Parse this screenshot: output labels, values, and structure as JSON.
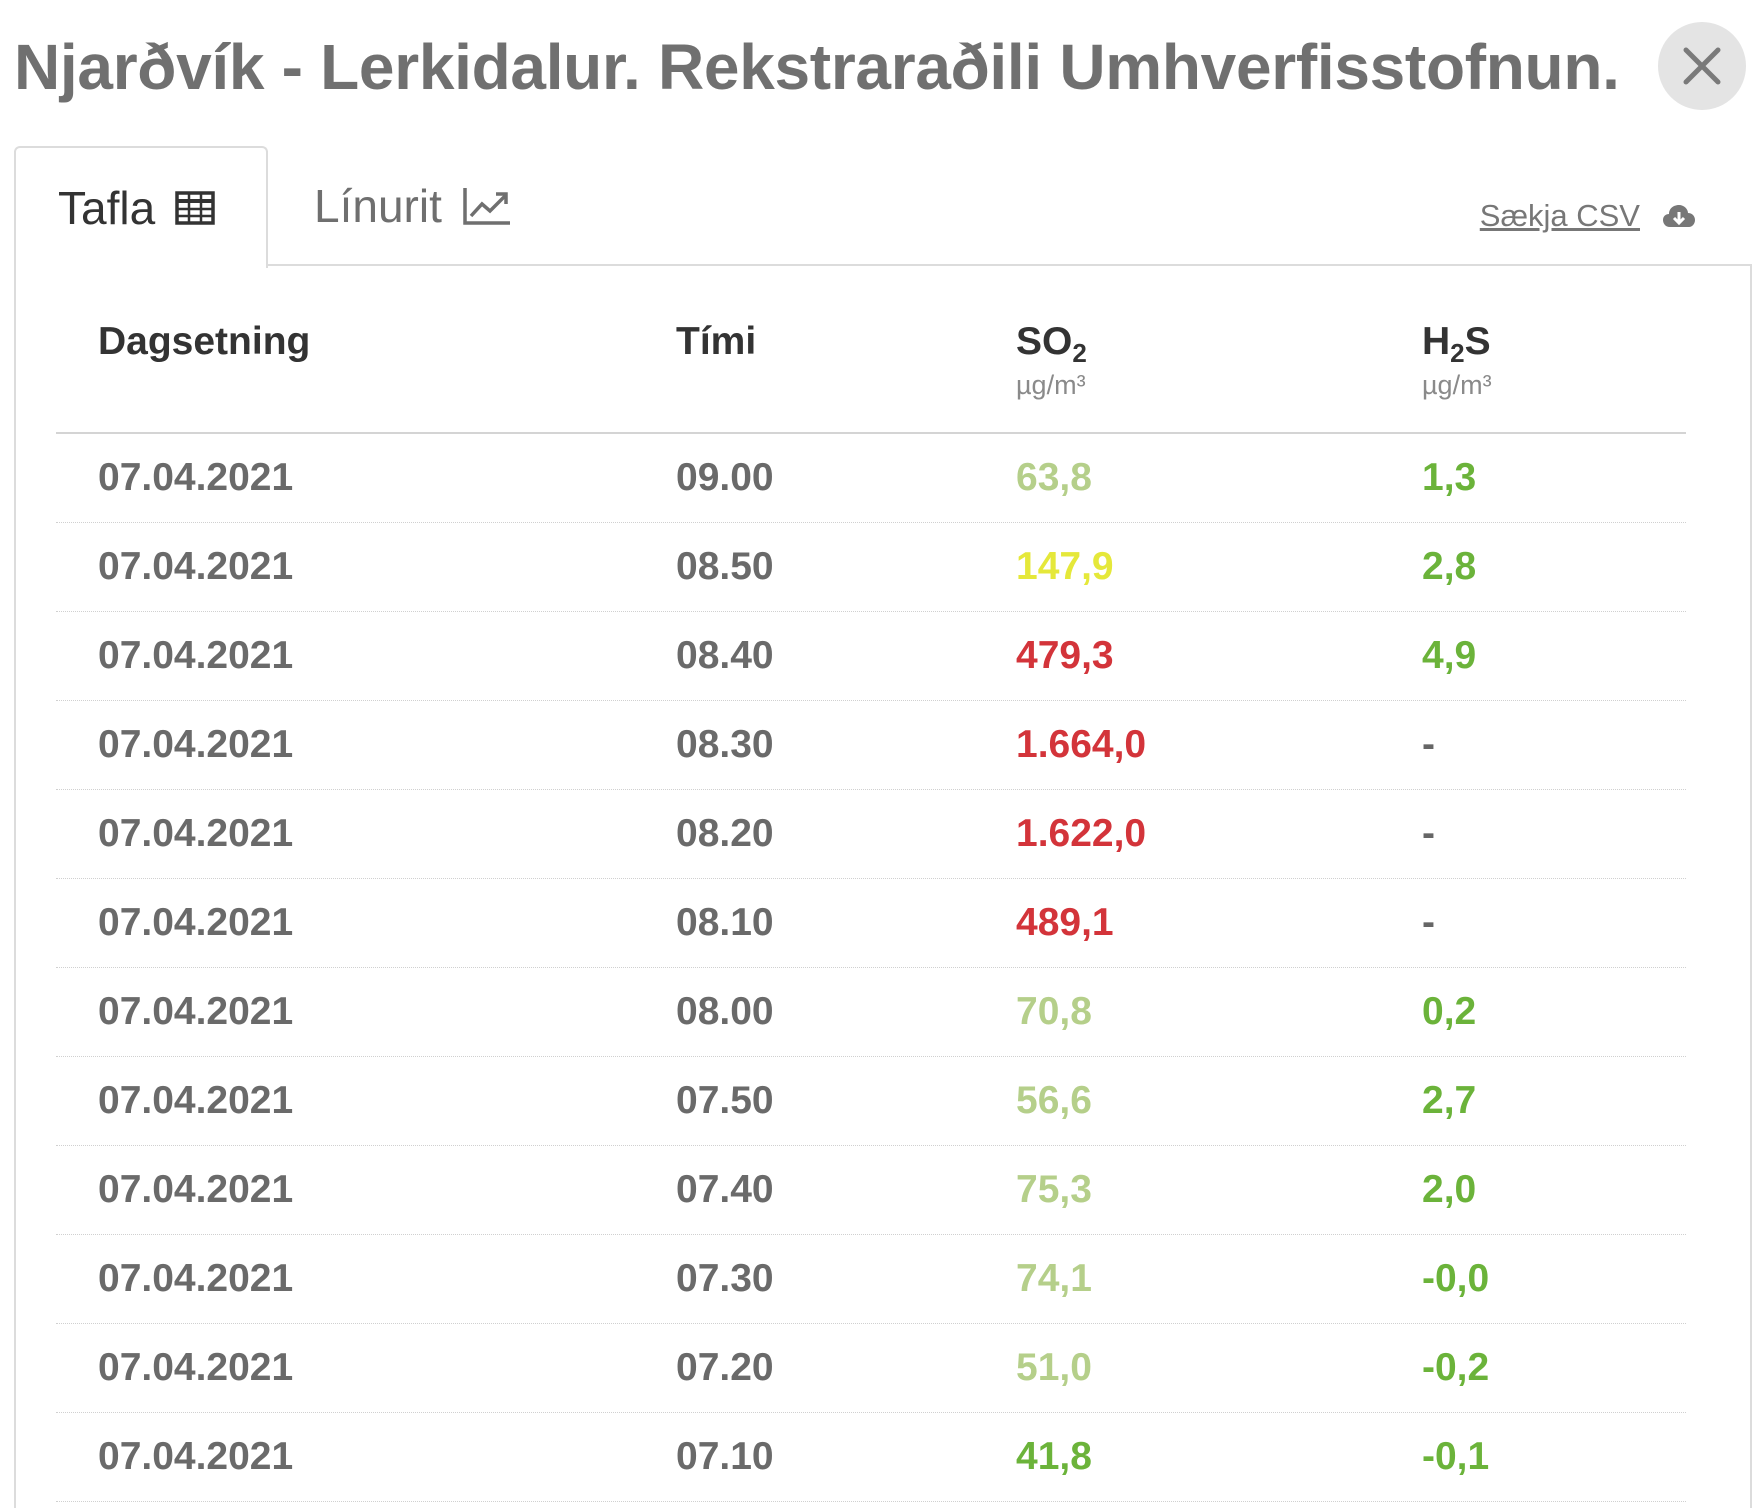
{
  "header": {
    "title": "Njarðvík - Lerkidalur. Rekstraraðili Umhverfisstofnun.",
    "close_icon": "close-icon"
  },
  "tabs": [
    {
      "label": "Tafla",
      "icon": "table-icon",
      "active": true
    },
    {
      "label": "Línurit",
      "icon": "line-chart-icon",
      "active": false
    }
  ],
  "download": {
    "label": "Sækja CSV",
    "icon": "cloud-download-icon"
  },
  "table": {
    "headers": {
      "date": "Dagsetning",
      "time": "Tími",
      "so2_main": "SO",
      "so2_sub": "2",
      "so2_unit": "µg/m³",
      "h2s_h": "H",
      "h2s_sub": "2",
      "h2s_s": "S",
      "h2s_unit": "µg/m³"
    },
    "rows": [
      {
        "date": "07.04.2021",
        "time": "09.00",
        "so2": "63,8",
        "so2_level": "green-light",
        "h2s": "1,3"
      },
      {
        "date": "07.04.2021",
        "time": "08.50",
        "so2": "147,9",
        "so2_level": "yellow",
        "h2s": "2,8"
      },
      {
        "date": "07.04.2021",
        "time": "08.40",
        "so2": "479,3",
        "so2_level": "red",
        "h2s": "4,9"
      },
      {
        "date": "07.04.2021",
        "time": "08.30",
        "so2": "1.664,0",
        "so2_level": "red",
        "h2s": "-"
      },
      {
        "date": "07.04.2021",
        "time": "08.20",
        "so2": "1.622,0",
        "so2_level": "red",
        "h2s": "-"
      },
      {
        "date": "07.04.2021",
        "time": "08.10",
        "so2": "489,1",
        "so2_level": "red",
        "h2s": "-"
      },
      {
        "date": "07.04.2021",
        "time": "08.00",
        "so2": "70,8",
        "so2_level": "green-light",
        "h2s": "0,2"
      },
      {
        "date": "07.04.2021",
        "time": "07.50",
        "so2": "56,6",
        "so2_level": "green-light",
        "h2s": "2,7"
      },
      {
        "date": "07.04.2021",
        "time": "07.40",
        "so2": "75,3",
        "so2_level": "green-light",
        "h2s": "2,0"
      },
      {
        "date": "07.04.2021",
        "time": "07.30",
        "so2": "74,1",
        "so2_level": "green-light",
        "h2s": "-0,0"
      },
      {
        "date": "07.04.2021",
        "time": "07.20",
        "so2": "51,0",
        "so2_level": "green-light",
        "h2s": "-0,2"
      },
      {
        "date": "07.04.2021",
        "time": "07.10",
        "so2": "41,8",
        "so2_level": "green",
        "h2s": "-0,1"
      }
    ]
  },
  "colors": {
    "green-light": "#b5cf8a",
    "yellow": "#e5e83a",
    "red": "#d3343a",
    "green": "#6bb33a"
  }
}
